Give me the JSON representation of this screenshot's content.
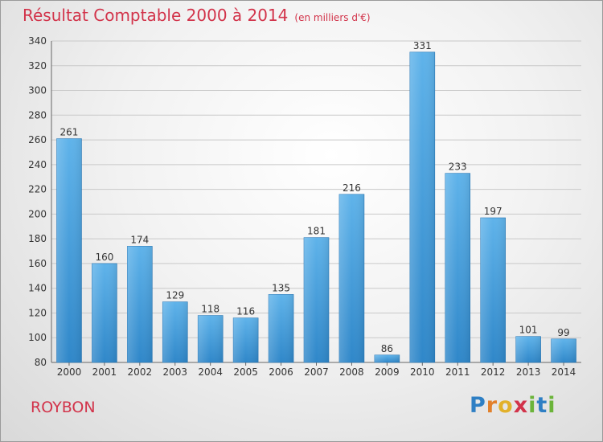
{
  "title": "Résultat Comptable 2000 à 2014",
  "unit": "(en milliers d'€)",
  "commune": "ROYBON",
  "logo": "Proxiti",
  "colors": {
    "bar": "#3d98d9",
    "bar_light": "#5fb3ea",
    "title": "#d2334a"
  },
  "chart_data": {
    "type": "bar",
    "title": "Résultat Comptable 2000 à 2014",
    "ylabel": "",
    "xlabel": "",
    "categories": [
      "2000",
      "2001",
      "2002",
      "2003",
      "2004",
      "2005",
      "2006",
      "2007",
      "2008",
      "2009",
      "2010",
      "2011",
      "2012",
      "2013",
      "2014"
    ],
    "values": [
      261,
      160,
      174,
      129,
      118,
      116,
      135,
      181,
      216,
      86,
      331,
      233,
      197,
      101,
      99
    ],
    "ylim": [
      80,
      340
    ],
    "yticks": [
      80,
      100,
      120,
      140,
      160,
      180,
      200,
      220,
      240,
      260,
      280,
      300,
      320,
      340
    ],
    "grid": true
  }
}
